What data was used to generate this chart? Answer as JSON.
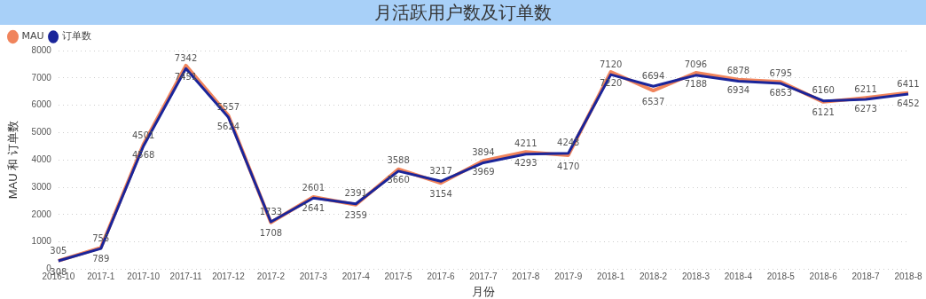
{
  "chart_data": {
    "type": "line",
    "title": "月活跃用户数及订单数",
    "xlabel": "月份",
    "ylabel": "MAU 和 订单数",
    "categories": [
      "2016-10",
      "2017-1",
      "2017-10",
      "2017-11",
      "2017-12",
      "2017-2",
      "2017-3",
      "2017-4",
      "2017-5",
      "2017-6",
      "2017-7",
      "2017-8",
      "2017-9",
      "2018-1",
      "2018-2",
      "2018-3",
      "2018-4",
      "2018-5",
      "2018-6",
      "2018-7",
      "2018-8"
    ],
    "series": [
      {
        "name": "MAU",
        "color": "#f0845c",
        "values": [
          308,
          789,
          4568,
          7451,
          5624,
          1708,
          2641,
          2359,
          3660,
          3154,
          3969,
          4293,
          4170,
          7220,
          6537,
          7188,
          6934,
          6853,
          6121,
          6273,
          6452
        ]
      },
      {
        "name": "订单数",
        "color": "#1a259a",
        "values": [
          305,
          755,
          4501,
          7342,
          5557,
          1733,
          2601,
          2391,
          3588,
          3217,
          3894,
          4211,
          4243,
          7120,
          6694,
          7096,
          6878,
          6795,
          6160,
          6211,
          6411
        ]
      }
    ],
    "ylim": [
      0,
      8000
    ],
    "yticks": [
      0,
      1000,
      2000,
      3000,
      4000,
      5000,
      6000,
      7000,
      8000
    ],
    "grid": "y",
    "legend": "top left",
    "marker": "none",
    "line_style": "solid",
    "data_labels": true
  }
}
